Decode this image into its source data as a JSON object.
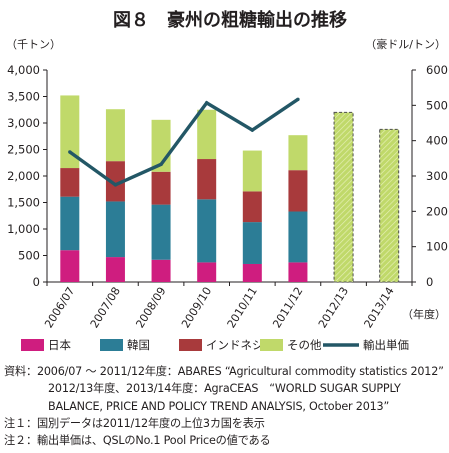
{
  "figure": {
    "title": "図８　豪州の粗糖輸出の推移",
    "left_unit": "（千トン）",
    "right_unit": "（豪ドル/トン）",
    "x_unit": "（年度）"
  },
  "chart_data": {
    "type": "bar",
    "stacked": true,
    "title": "図８　豪州の粗糖輸出の推移",
    "categories": [
      "2006/07",
      "2007/08",
      "2008/09",
      "2009/10",
      "2010/11",
      "2011/12",
      "2012/13",
      "2013/14"
    ],
    "ylabel": "（千トン）",
    "ylim": [
      0,
      4000
    ],
    "yticks": [
      "0",
      "500",
      "1,000",
      "1,500",
      "2,000",
      "2,500",
      "3,000",
      "3,500",
      "4,000"
    ],
    "y2label": "（豪ドル/トン）",
    "y2lim": [
      0,
      600
    ],
    "y2ticks": [
      "0",
      "100",
      "200",
      "300",
      "400",
      "500",
      "600"
    ],
    "xlabel": "（年度）",
    "grid": false,
    "legend_position": "bottom",
    "series": [
      {
        "name": "日本",
        "color": "#cf1d7f",
        "values": [
          600,
          470,
          420,
          370,
          340,
          370,
          null,
          null
        ]
      },
      {
        "name": "韓国",
        "color": "#2c7d96",
        "values": [
          1010,
          1050,
          1040,
          1190,
          790,
          960,
          null,
          null
        ]
      },
      {
        "name": "インドネシア",
        "color": "#a83a3c",
        "values": [
          540,
          760,
          620,
          760,
          580,
          780,
          null,
          null
        ]
      },
      {
        "name": "その他",
        "color": "#c0d96a",
        "values": [
          1370,
          980,
          980,
          930,
          770,
          660,
          3200,
          2880
        ],
        "forecast_from_index": 6
      },
      {
        "name": "輸出単価",
        "type": "line",
        "axis": "right",
        "color": "#235766",
        "values": [
          368,
          275,
          333,
          507,
          430,
          517,
          null,
          null
        ]
      }
    ]
  },
  "notes": [
    "資料：2006/07 ～ 2011/12年度：ABARES “Agricultural commodity statistics 2012”",
    "2012/13年度、2013/14年度：AgraCEAS　“WORLD SUGAR SUPPLY",
    "BALANCE, PRICE AND POLICY TREND ANALYSIS, October 2013”",
    "注１：国別データは2011/12年度の上位3カ国を表示",
    "注２：輸出単価は、QSLのNo.1 Pool Priceの値である"
  ]
}
